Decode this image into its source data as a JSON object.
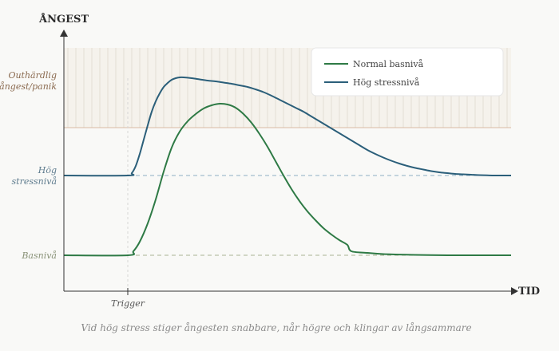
{
  "chart_data": {
    "type": "line",
    "title": "",
    "ylabel": "ÅNGEST",
    "xlabel": "TID",
    "caption": "Vid hög stress stiger ångesten snabbare, når högre och klingar av långsammare",
    "xlim": [
      0,
      560
    ],
    "ylim": [
      0,
      305
    ],
    "grid": false,
    "legend_position": "top-right",
    "levels": [
      {
        "key": "outhardlig",
        "label_lines": [
          "Outhärdlig",
          "ångest/panik"
        ],
        "y": 205,
        "color": "#8a6a4f",
        "line_color": "#d9b9a3"
      },
      {
        "key": "hog",
        "label_lines": [
          "Hög",
          "stressnivå"
        ],
        "y": 145,
        "color": "#607d8f",
        "line_color": "#8eb0c3"
      },
      {
        "key": "bas",
        "label_lines": [
          "Basnivå"
        ],
        "y": 45,
        "color": "#8a9378",
        "line_color": "#a9b393"
      }
    ],
    "unbearable_zone": {
      "from": 205,
      "to": 305,
      "fill": "#f5f2ec",
      "hatch": "#e3ddd3"
    },
    "trigger": {
      "label": "Trigger",
      "x": 80
    },
    "series": [
      {
        "name": "Normal basnivå",
        "color": "#2e7a45",
        "points": [
          [
            0,
            45
          ],
          [
            80,
            45
          ],
          [
            87,
            50
          ],
          [
            95,
            62
          ],
          [
            105,
            85
          ],
          [
            115,
            115
          ],
          [
            125,
            150
          ],
          [
            135,
            180
          ],
          [
            145,
            200
          ],
          [
            155,
            213
          ],
          [
            165,
            222
          ],
          [
            175,
            229
          ],
          [
            185,
            233
          ],
          [
            195,
            235
          ],
          [
            205,
            234
          ],
          [
            215,
            230
          ],
          [
            225,
            222
          ],
          [
            235,
            211
          ],
          [
            245,
            197
          ],
          [
            255,
            181
          ],
          [
            265,
            163
          ],
          [
            275,
            145
          ],
          [
            285,
            128
          ],
          [
            295,
            113
          ],
          [
            305,
            100
          ],
          [
            315,
            89
          ],
          [
            325,
            79
          ],
          [
            335,
            71
          ],
          [
            345,
            64
          ],
          [
            355,
            58
          ],
          [
            360,
            50
          ],
          [
            380,
            48
          ],
          [
            400,
            46.5
          ],
          [
            440,
            45.5
          ],
          [
            480,
            45
          ],
          [
            520,
            45
          ],
          [
            560,
            45
          ]
        ]
      },
      {
        "name": "Hög stressnivå",
        "color": "#2b5f7a",
        "points": [
          [
            0,
            145
          ],
          [
            80,
            145
          ],
          [
            85,
            148
          ],
          [
            90,
            157
          ],
          [
            95,
            172
          ],
          [
            100,
            190
          ],
          [
            105,
            208
          ],
          [
            110,
            225
          ],
          [
            115,
            238
          ],
          [
            120,
            248
          ],
          [
            125,
            256
          ],
          [
            130,
            261
          ],
          [
            135,
            265
          ],
          [
            140,
            267
          ],
          [
            145,
            268
          ],
          [
            150,
            268
          ],
          [
            160,
            267
          ],
          [
            170,
            265.5
          ],
          [
            180,
            264
          ],
          [
            190,
            263
          ],
          [
            200,
            261.5
          ],
          [
            210,
            260
          ],
          [
            220,
            258
          ],
          [
            230,
            256
          ],
          [
            240,
            253
          ],
          [
            250,
            249.5
          ],
          [
            260,
            245
          ],
          [
            270,
            240
          ],
          [
            280,
            235
          ],
          [
            290,
            230
          ],
          [
            300,
            225
          ],
          [
            310,
            219
          ],
          [
            320,
            213
          ],
          [
            330,
            207
          ],
          [
            340,
            201
          ],
          [
            350,
            195
          ],
          [
            360,
            189
          ],
          [
            370,
            183
          ],
          [
            380,
            177
          ],
          [
            390,
            172
          ],
          [
            400,
            167.5
          ],
          [
            410,
            163.5
          ],
          [
            420,
            160
          ],
          [
            430,
            157
          ],
          [
            440,
            154.5
          ],
          [
            450,
            152.5
          ],
          [
            460,
            150.5
          ],
          [
            470,
            149
          ],
          [
            480,
            148
          ],
          [
            490,
            147
          ],
          [
            500,
            146.5
          ],
          [
            510,
            146
          ],
          [
            520,
            145.5
          ],
          [
            530,
            145.2
          ],
          [
            540,
            145
          ],
          [
            560,
            145
          ]
        ]
      }
    ]
  }
}
